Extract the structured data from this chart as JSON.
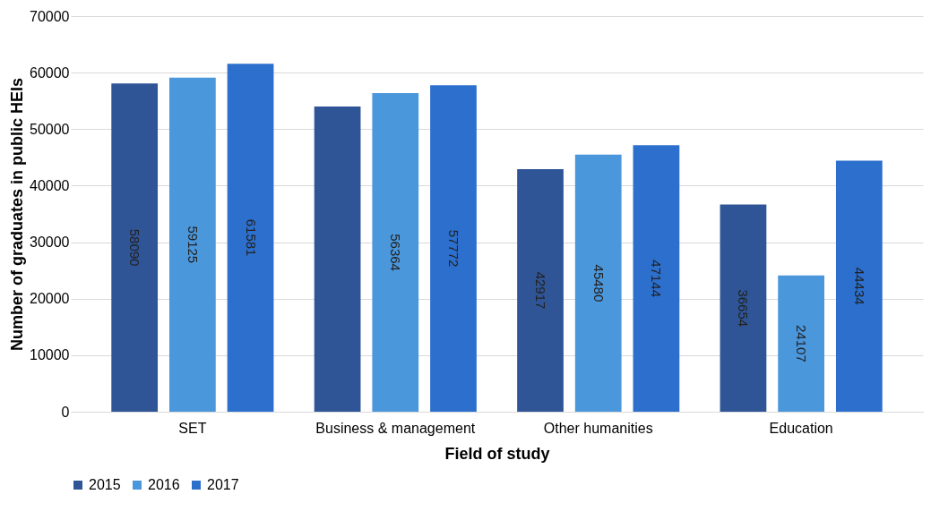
{
  "chart_data": {
    "type": "bar",
    "xlabel": "Field of study",
    "ylabel": "Number of graduates in public HEIs",
    "categories": [
      "SET",
      "Business & management",
      "Other humanities",
      "Education"
    ],
    "series": [
      {
        "name": "2015",
        "color": "#2f5597",
        "values": [
          58090,
          54000,
          42917,
          36654
        ],
        "value_labels": [
          "58090",
          null,
          "42917",
          "36654"
        ]
      },
      {
        "name": "2016",
        "color": "#4a97dc",
        "values": [
          59125,
          56364,
          45480,
          24107
        ],
        "value_labels": [
          "59125",
          "56364",
          "45480",
          "24107"
        ]
      },
      {
        "name": "2017",
        "color": "#2c6fcd",
        "values": [
          61581,
          57772,
          47144,
          44434
        ],
        "value_labels": [
          "61581",
          "57772",
          "47144",
          "44434"
        ]
      }
    ],
    "ylim": [
      0,
      70000
    ],
    "yticks": [
      0,
      10000,
      20000,
      30000,
      40000,
      50000,
      60000,
      70000
    ],
    "grid": "y",
    "legend": "bottom"
  }
}
